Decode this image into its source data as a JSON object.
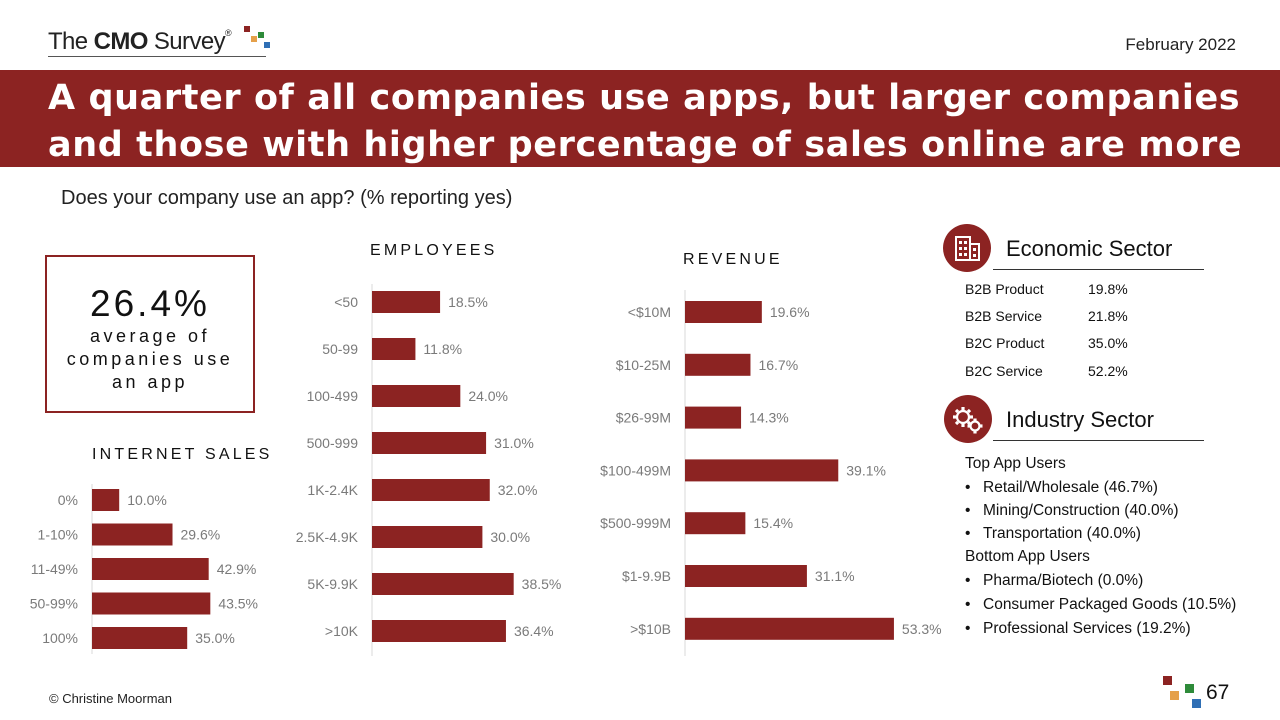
{
  "logo": {
    "text_the": "The ",
    "text_cmo": "CMO",
    "text_survey": " Survey",
    "reg": "®"
  },
  "date": "February 2022",
  "title": "A quarter of all companies use apps, but larger companies and those with higher percentage of sales online are more likely",
  "question": "Does your company use an app? (% reporting yes)",
  "kpi": {
    "value": "26.4%",
    "label": "average of companies use an app"
  },
  "colors": {
    "brand": "#8c2322",
    "bar": "#8c2322",
    "sq_red": "#8c2322",
    "sq_orange": "#e5a04a",
    "sq_green": "#2e8b3a",
    "sq_blue": "#2f6fb5"
  },
  "chart_data": [
    {
      "type": "bar",
      "orientation": "horizontal",
      "title": "INTERNET SALES",
      "categories": [
        "0%",
        "1-10%",
        "11-49%",
        "50-99%",
        "100%"
      ],
      "values": [
        10.0,
        29.6,
        42.9,
        43.5,
        35.0
      ],
      "labels": [
        "10.0%",
        "29.6%",
        "42.9%",
        "43.5%",
        "35.0%"
      ],
      "xlim": [
        0,
        55
      ]
    },
    {
      "type": "bar",
      "orientation": "horizontal",
      "title": "EMPLOYEES",
      "categories": [
        "<50",
        "50-99",
        "100-499",
        "500-999",
        "1K-2.4K",
        "2.5K-4.9K",
        "5K-9.9K",
        ">10K"
      ],
      "values": [
        18.5,
        11.8,
        24.0,
        31.0,
        32.0,
        30.0,
        38.5,
        36.4
      ],
      "labels": [
        "18.5%",
        "11.8%",
        "24.0%",
        "31.0%",
        "32.0%",
        "30.0%",
        "38.5%",
        "36.4%"
      ],
      "xlim": [
        0,
        55
      ]
    },
    {
      "type": "bar",
      "orientation": "horizontal",
      "title": "REVENUE",
      "categories": [
        "<$10M",
        "$10-25M",
        "$26-99M",
        "$100-499M",
        "$500-999M",
        "$1-9.9B",
        ">$10B"
      ],
      "values": [
        19.6,
        16.7,
        14.3,
        39.1,
        15.4,
        31.1,
        53.3
      ],
      "labels": [
        "19.6%",
        "16.7%",
        "14.3%",
        "39.1%",
        "15.4%",
        "31.1%",
        "53.3%"
      ],
      "xlim": [
        0,
        55
      ]
    }
  ],
  "economic": {
    "heading": "Economic Sector",
    "icon": "building-icon",
    "rows": [
      {
        "label": "B2B Product",
        "value": "19.8%"
      },
      {
        "label": "B2B Service",
        "value": "21.8%"
      },
      {
        "label": "B2C Product",
        "value": "35.0%"
      },
      {
        "label": "B2C Service",
        "value": "52.2%"
      }
    ]
  },
  "industry": {
    "heading": "Industry Sector",
    "icon": "gears-icon",
    "top_label": "Top App Users",
    "top": [
      "Retail/Wholesale (46.7%)",
      "Mining/Construction (40.0%)",
      "Transportation (40.0%)"
    ],
    "bottom_label": "Bottom App Users",
    "bottom": [
      "Pharma/Biotech (0.0%)",
      "Consumer Packaged Goods (10.5%)",
      "Professional Services (19.2%)"
    ]
  },
  "footer": {
    "copyright": "© Christine Moorman",
    "page": "67"
  }
}
